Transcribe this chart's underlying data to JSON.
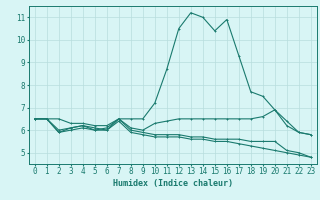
{
  "x": [
    0,
    1,
    2,
    3,
    4,
    5,
    6,
    7,
    8,
    9,
    10,
    11,
    12,
    13,
    14,
    15,
    16,
    17,
    18,
    19,
    20,
    21,
    22,
    23
  ],
  "line1": [
    6.5,
    6.5,
    6.5,
    6.3,
    6.3,
    6.2,
    6.2,
    6.5,
    6.5,
    6.5,
    7.2,
    8.7,
    10.5,
    11.2,
    11.0,
    10.4,
    10.9,
    9.3,
    7.7,
    7.5,
    6.9,
    6.2,
    5.9,
    5.8
  ],
  "line2": [
    6.5,
    6.5,
    6.0,
    6.1,
    6.2,
    6.1,
    6.0,
    6.5,
    6.0,
    5.9,
    5.8,
    5.8,
    5.8,
    5.7,
    5.7,
    5.6,
    5.6,
    5.6,
    5.5,
    5.5,
    5.5,
    5.1,
    5.0,
    4.8
  ],
  "line3": [
    6.5,
    6.5,
    5.9,
    6.0,
    6.1,
    6.0,
    6.0,
    6.4,
    5.9,
    5.8,
    5.7,
    5.7,
    5.7,
    5.6,
    5.6,
    5.5,
    5.5,
    5.4,
    5.3,
    5.2,
    5.1,
    5.0,
    4.9,
    4.8
  ],
  "line4": [
    6.5,
    6.5,
    5.9,
    6.1,
    6.2,
    6.0,
    6.1,
    6.5,
    6.1,
    6.0,
    6.3,
    6.4,
    6.5,
    6.5,
    6.5,
    6.5,
    6.5,
    6.5,
    6.5,
    6.6,
    6.9,
    6.4,
    5.9,
    5.8
  ],
  "color": "#1a7a6e",
  "bg_color": "#d8f5f5",
  "grid_color": "#b8dede",
  "ylim": [
    4.5,
    11.5
  ],
  "yticks": [
    5,
    6,
    7,
    8,
    9,
    10,
    11
  ],
  "xlim": [
    -0.5,
    23.5
  ],
  "xlabel": "Humidex (Indice chaleur)",
  "xlabel_fontsize": 6.0,
  "tick_fontsize": 5.5
}
